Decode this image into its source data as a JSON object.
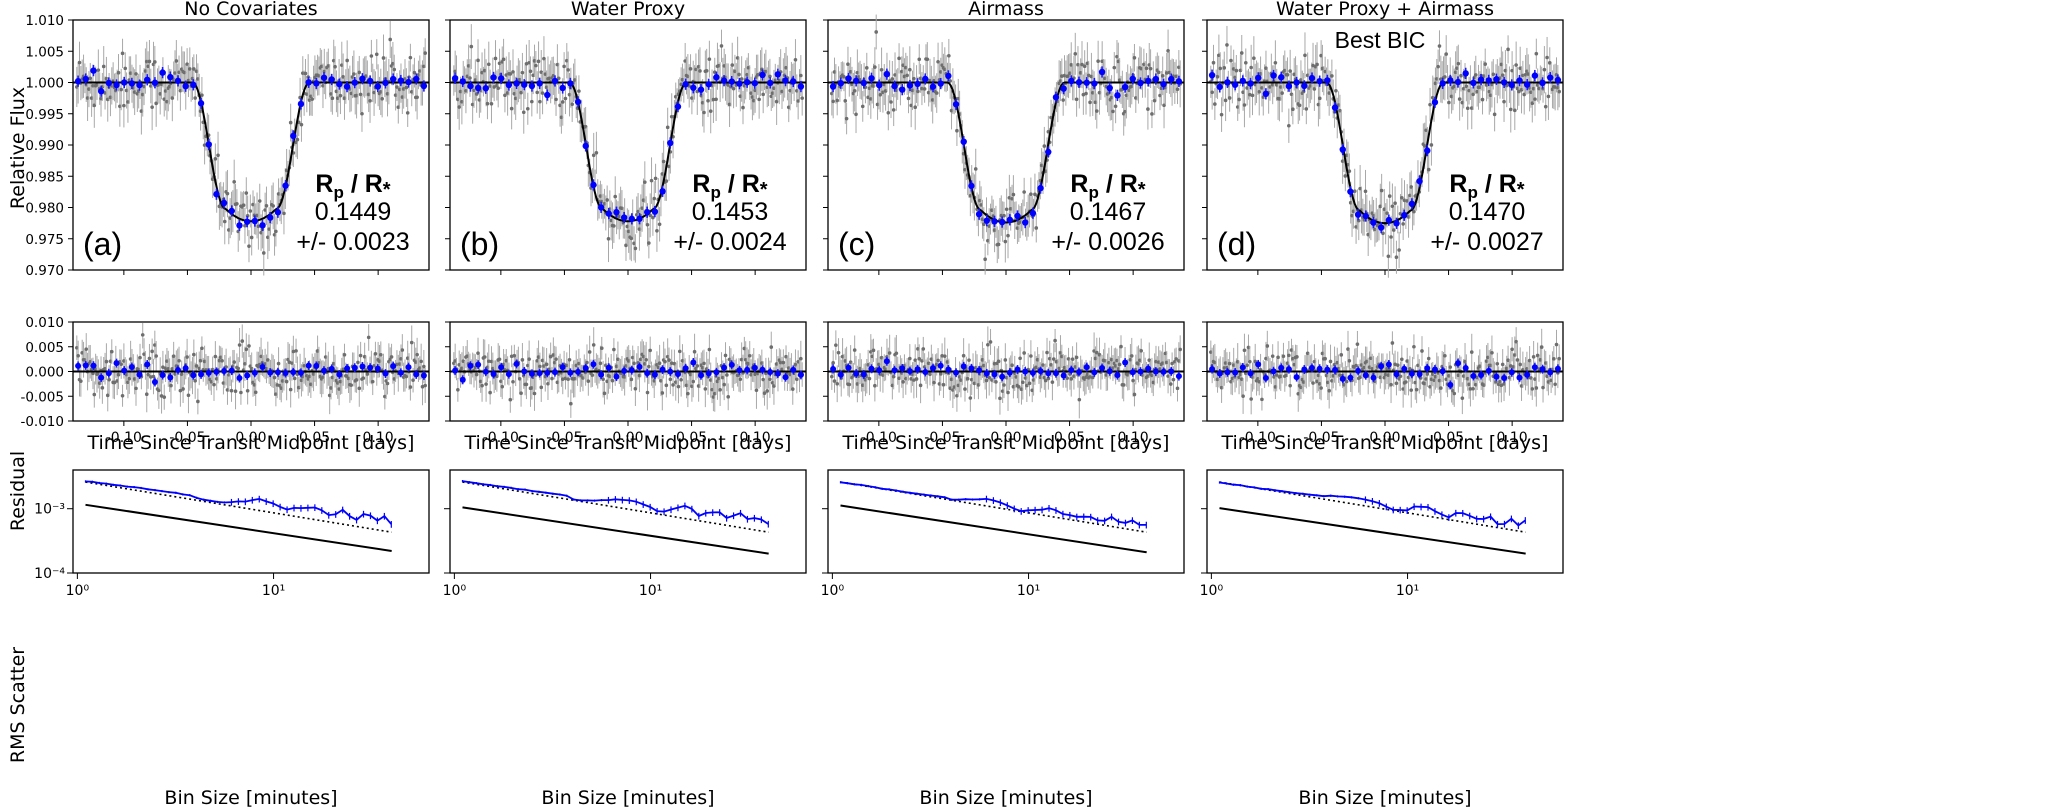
{
  "figure": {
    "xlabel_time": "Time Since Transit Midpoint [days]",
    "xlabel_bin": "Bin Size [minutes]",
    "ylabel_flux": "Relative Flux",
    "ylabel_residual": "Residual",
    "ylabel_rms": "RMS Scatter",
    "ratio_label_main": "R",
    "ratio_label_sub_p": "p",
    "ratio_label_sep": " / R",
    "ratio_label_star": "*"
  },
  "chart_data": [
    {
      "panel": "a",
      "title": "No Covariates",
      "letter": "(a)",
      "rp_rs": "0.1449",
      "rp_rs_err": "+/- 0.0023",
      "note": "",
      "types": {
        "top": "scatter",
        "middle": "scatter",
        "bottom": "line"
      },
      "light_curve": {
        "x_range": [
          -0.14,
          0.14
        ],
        "ylim": [
          0.97,
          1.01
        ],
        "yticks": [
          "0.970",
          "0.975",
          "0.980",
          "0.985",
          "0.990",
          "0.995",
          "1.000",
          "1.005",
          "1.010"
        ],
        "depth": 0.0222,
        "t_total": 0.092,
        "t_ingress": 0.026
      },
      "residual": {
        "ylim": [
          -0.01,
          0.01
        ],
        "yticks": [
          "-0.010",
          "-0.005",
          "0.000",
          "0.005",
          "0.010"
        ],
        "xticks": [
          "-0.10",
          "-0.05",
          "0.00",
          "0.05",
          "0.10"
        ]
      },
      "rms": {
        "x_log_range": [
          1,
          40
        ],
        "y_log_range": [
          0.0001,
          0.004
        ],
        "yticks": [
          "10⁻⁴",
          "10⁻³"
        ],
        "xticks": [
          "10⁰",
          "10¹"
        ],
        "observed_start": 0.0026,
        "observed_end": 0.00068,
        "expected_start": 0.00115,
        "expected_end": 0.00022
      }
    },
    {
      "panel": "b",
      "title": "Water Proxy",
      "letter": "(b)",
      "rp_rs": "0.1453",
      "rp_rs_err": "+/- 0.0024",
      "note": "",
      "types": {
        "top": "scatter",
        "middle": "scatter",
        "bottom": "line"
      },
      "light_curve": {
        "x_range": [
          -0.14,
          0.14
        ],
        "ylim": [
          0.97,
          1.01
        ],
        "depth": 0.0222,
        "t_total": 0.092,
        "t_ingress": 0.026
      },
      "residual": {
        "ylim": [
          -0.01,
          0.01
        ],
        "xticks": [
          "-0.10",
          "-0.05",
          "0.00",
          "0.05",
          "0.10"
        ]
      },
      "rms": {
        "x_log_range": [
          1,
          40
        ],
        "y_log_range": [
          0.0001,
          0.004
        ],
        "xticks": [
          "10⁰",
          "10¹"
        ],
        "observed_start": 0.0026,
        "observed_end": 0.00066,
        "expected_start": 0.00105,
        "expected_end": 0.0002
      }
    },
    {
      "panel": "c",
      "title": "Airmass",
      "letter": "(c)",
      "rp_rs": "0.1467",
      "rp_rs_err": "+/- 0.0026",
      "note": "",
      "types": {
        "top": "scatter",
        "middle": "scatter",
        "bottom": "line"
      },
      "light_curve": {
        "x_range": [
          -0.14,
          0.14
        ],
        "ylim": [
          0.97,
          1.01
        ],
        "depth": 0.0224,
        "t_total": 0.092,
        "t_ingress": 0.026
      },
      "residual": {
        "ylim": [
          -0.01,
          0.01
        ],
        "xticks": [
          "-0.10",
          "-0.05",
          "0.00",
          "0.05",
          "0.10"
        ]
      },
      "rms": {
        "x_log_range": [
          1,
          40
        ],
        "y_log_range": [
          0.0001,
          0.004
        ],
        "xticks": [
          "10⁰",
          "10¹"
        ],
        "observed_start": 0.0026,
        "observed_end": 0.00055,
        "expected_start": 0.00112,
        "expected_end": 0.00021
      }
    },
    {
      "panel": "d",
      "title": "Water Proxy + Airmass",
      "letter": "(d)",
      "rp_rs": "0.1470",
      "rp_rs_err": "+/- 0.0027",
      "note": "Best BIC",
      "types": {
        "top": "scatter",
        "middle": "scatter",
        "bottom": "line"
      },
      "light_curve": {
        "x_range": [
          -0.14,
          0.14
        ],
        "ylim": [
          0.97,
          1.01
        ],
        "depth": 0.0225,
        "t_total": 0.092,
        "t_ingress": 0.026
      },
      "residual": {
        "ylim": [
          -0.01,
          0.01
        ],
        "xticks": [
          "-0.10",
          "-0.05",
          "0.00",
          "0.05",
          "0.10"
        ]
      },
      "rms": {
        "x_log_range": [
          1,
          40
        ],
        "y_log_range": [
          0.0001,
          0.004
        ],
        "xticks": [
          "10⁰",
          "10¹"
        ],
        "observed_start": 0.0026,
        "observed_end": 0.00058,
        "expected_start": 0.00102,
        "expected_end": 0.0002
      }
    }
  ]
}
